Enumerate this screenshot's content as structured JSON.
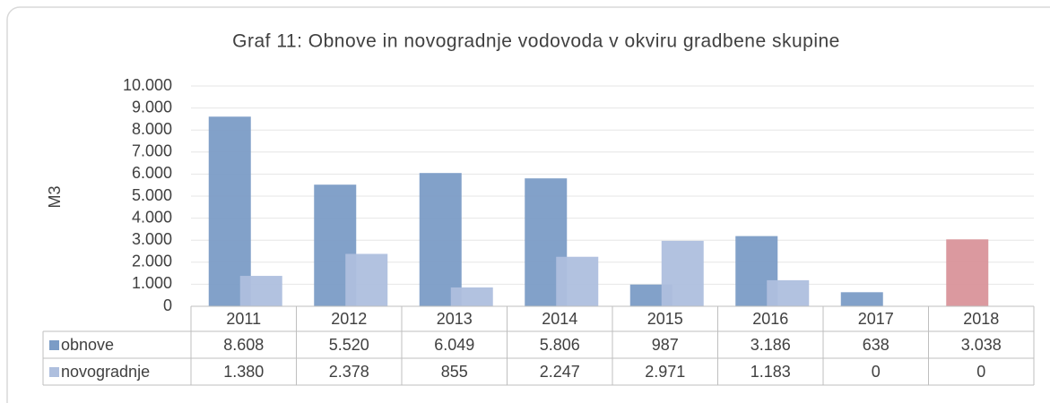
{
  "chart_data": {
    "type": "bar",
    "title": "Graf 11: Obnove in novogradnje vodovoda v okviru gradbene skupine",
    "ylabel": "M3",
    "categories": [
      "2011",
      "2012",
      "2013",
      "2014",
      "2015",
      "2016",
      "2017",
      "2018"
    ],
    "series": [
      {
        "name": "obnove",
        "color": "#7b9cc6",
        "colors": [
          "#7b9cc6",
          "#7b9cc6",
          "#7b9cc6",
          "#7b9cc6",
          "#7b9cc6",
          "#7b9cc6",
          "#7b9cc6",
          "#d9939a"
        ],
        "values": [
          8608,
          5520,
          6049,
          5806,
          987,
          3186,
          638,
          3038
        ],
        "value_labels": [
          "8.608",
          "5.520",
          "6.049",
          "5.806",
          "987",
          "3.186",
          "638",
          "3.038"
        ]
      },
      {
        "name": "novogradnje",
        "color": "#aebfde",
        "values": [
          1380,
          2378,
          855,
          2247,
          2971,
          1183,
          0,
          0
        ],
        "value_labels": [
          "1.380",
          "2.378",
          "855",
          "2.247",
          "2.971",
          "1.183",
          "0",
          "0"
        ]
      }
    ],
    "ylim": [
      0,
      10000
    ],
    "yticks": [
      0,
      {
        "value": 1000,
        "label": "1.000"
      },
      {
        "value": 2000,
        "label": "2.000"
      },
      {
        "value": 3000,
        "label": "3.000"
      },
      {
        "value": 4000,
        "label": "4.000"
      },
      {
        "value": 5000,
        "label": "5.000"
      },
      {
        "value": 6000,
        "label": "6.000"
      },
      {
        "value": 7000,
        "label": "7.000"
      },
      {
        "value": 8000,
        "label": "8.000"
      },
      {
        "value": 9000,
        "label": "9.000"
      },
      {
        "value": 10000,
        "label": "10.000"
      }
    ],
    "grid": true,
    "data_table": true
  }
}
